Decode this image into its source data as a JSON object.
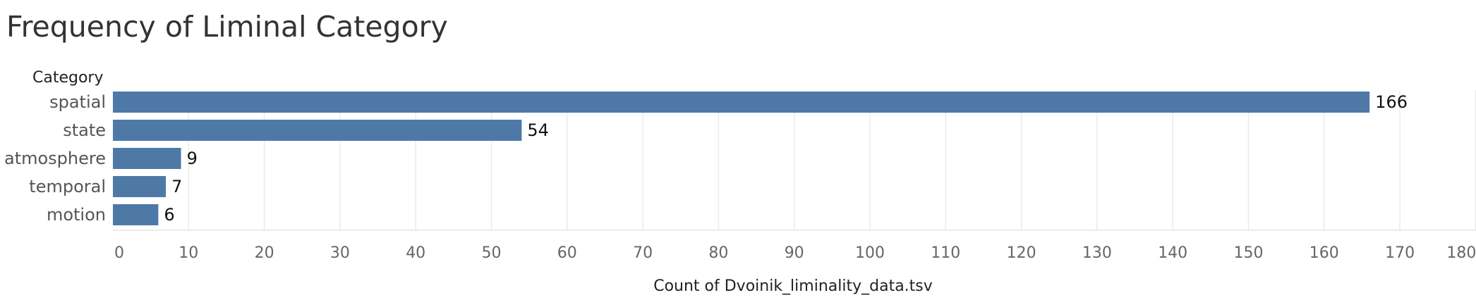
{
  "chart_data": {
    "type": "bar",
    "orientation": "horizontal",
    "title": "Frequency of Liminal Category",
    "row_header": "Category",
    "xlabel": "Count of Dvoinik_liminality_data.tsv",
    "categories": [
      "spatial",
      "state",
      "atmosphere",
      "temporal",
      "motion"
    ],
    "values": [
      166,
      54,
      9,
      7,
      6
    ],
    "xlim": [
      0,
      180
    ],
    "xticks": [
      0,
      10,
      20,
      30,
      40,
      50,
      60,
      70,
      80,
      90,
      100,
      110,
      120,
      130,
      140,
      150,
      160,
      170,
      180
    ],
    "grid": true,
    "bar_color": "#4e79a7",
    "data_labels": true
  }
}
